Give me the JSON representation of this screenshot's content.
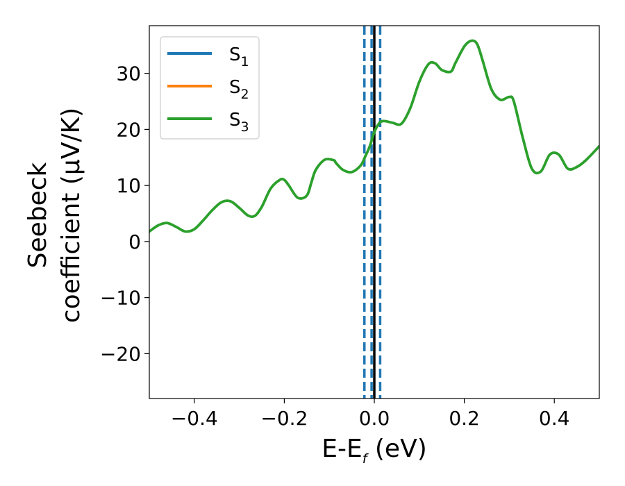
{
  "chart_data": {
    "type": "line",
    "xlabel": {
      "main": "E-E",
      "sub": "f",
      "tail": " (eV)"
    },
    "ylabel": {
      "line1": "Seebeck",
      "line2": "coefficient  (μV/K)"
    },
    "xlim": [
      -0.5,
      0.5
    ],
    "ylim": [
      -28,
      38.5
    ],
    "xticks": [
      {
        "v": -0.4,
        "label": "−0.4"
      },
      {
        "v": -0.2,
        "label": "−0.2"
      },
      {
        "v": 0.0,
        "label": "0.0"
      },
      {
        "v": 0.2,
        "label": "0.2"
      },
      {
        "v": 0.4,
        "label": "0.4"
      }
    ],
    "yticks": [
      {
        "v": -20,
        "label": "−20"
      },
      {
        "v": -10,
        "label": "−10"
      },
      {
        "v": 0,
        "label": "0"
      },
      {
        "v": 10,
        "label": "10"
      },
      {
        "v": 20,
        "label": "20"
      },
      {
        "v": 30,
        "label": "30"
      }
    ],
    "grid": false,
    "legend_position": "upper-left",
    "series": [
      {
        "name": "S",
        "sub": "1",
        "color": "#1f77b4",
        "x": [],
        "y": []
      },
      {
        "name": "S",
        "sub": "2",
        "color": "#ff7f0e",
        "x": [],
        "y": []
      },
      {
        "name": "S",
        "sub": "3",
        "color": "#2ca02c",
        "x": [
          -0.5,
          -0.48,
          -0.46,
          -0.44,
          -0.42,
          -0.4,
          -0.38,
          -0.36,
          -0.34,
          -0.32,
          -0.3,
          -0.28,
          -0.265,
          -0.25,
          -0.23,
          -0.21,
          -0.2,
          -0.19,
          -0.17,
          -0.15,
          -0.14,
          -0.13,
          -0.11,
          -0.09,
          -0.085,
          -0.07,
          -0.05,
          -0.03,
          -0.02,
          -0.01,
          0.0,
          0.01,
          0.02,
          0.04,
          0.06,
          0.08,
          0.1,
          0.12,
          0.135,
          0.15,
          0.17,
          0.18,
          0.2,
          0.215,
          0.228,
          0.24,
          0.26,
          0.28,
          0.3,
          0.31,
          0.33,
          0.35,
          0.37,
          0.39,
          0.41,
          0.43,
          0.45,
          0.47,
          0.5
        ],
        "y": [
          1.8,
          2.9,
          3.3,
          2.6,
          1.8,
          2.2,
          3.8,
          5.6,
          7.0,
          7.2,
          6.0,
          4.6,
          4.6,
          6.2,
          9.5,
          11.0,
          11.0,
          10.0,
          7.8,
          8.2,
          10.5,
          12.8,
          14.6,
          14.5,
          14.0,
          12.8,
          12.4,
          13.6,
          15.2,
          17.0,
          19.5,
          21.0,
          21.5,
          21.2,
          21.0,
          23.8,
          28.5,
          31.6,
          31.8,
          30.6,
          30.3,
          31.8,
          34.8,
          35.8,
          35.3,
          32.5,
          27.2,
          25.3,
          25.8,
          25.0,
          18.5,
          13.0,
          12.5,
          15.5,
          15.5,
          13.0,
          13.3,
          14.5,
          17.0
        ]
      }
    ],
    "vlines": [
      {
        "x": -0.022,
        "style": "dashed",
        "color": "#1f77b4"
      },
      {
        "x": -0.006,
        "style": "dashed",
        "color": "#1f77b4"
      },
      {
        "x": 0.013,
        "style": "dashed",
        "color": "#1f77b4"
      },
      {
        "x": 0.0,
        "style": "solid",
        "color": "#000000"
      }
    ]
  }
}
